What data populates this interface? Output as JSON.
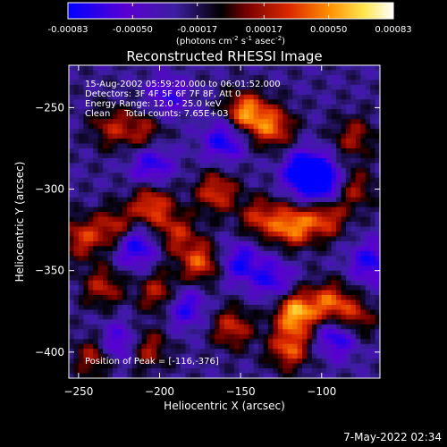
{
  "colorbar": {
    "tick_labels": [
      "-0.00083",
      "-0.00050",
      "-0.00017",
      "0.00017",
      "0.00050",
      "0.00083"
    ],
    "tick_values": [
      -0.00083,
      -0.0005,
      -0.00017,
      0.00017,
      0.0005,
      0.00083
    ],
    "range": [
      -0.00083,
      0.00083
    ],
    "unit_main": "(photons cm",
    "unit_sup1": "-2",
    "unit_mid": " s",
    "unit_sup2": "-1",
    "unit_end": " asec",
    "unit_sup3": "-2",
    "unit_close": ")",
    "colors": [
      "#0000ff",
      "#5a00d2",
      "#3c1ea0",
      "#000000",
      "#780000",
      "#dc2800",
      "#ff8c00",
      "#ffe650",
      "#ffffff"
    ]
  },
  "chart_data": {
    "type": "heatmap",
    "title": "Reconstructed RHESSI Image",
    "xlabel": "Heliocentric X (arcsec)",
    "ylabel": "Heliocentric Y (arcsec)",
    "xlim": [
      -256,
      -64
    ],
    "ylim": [
      -416,
      -224
    ],
    "x_ticks": [
      -250,
      -200,
      -150,
      -100
    ],
    "y_ticks": [
      -250,
      -300,
      -350,
      -400
    ],
    "grid": false,
    "annotations": [
      "15-Aug-2002 05:59:20.000 to 06:01:52.000",
      "Detectors: 3F 4F 5F 6F 7F 8F, Att 0",
      "Energy Range: 12.0 - 25.0 keV",
      "Clean     Total counts: 7.65E+03"
    ],
    "peak_label": "Position of Peak = [-116,-376]",
    "peak": [
      -116,
      -376
    ],
    "bright_sources": [
      {
        "x": -147,
        "y": -253,
        "value": 0.00075
      },
      {
        "x": -130,
        "y": -262,
        "value": 0.0006
      },
      {
        "x": -205,
        "y": -310,
        "value": 0.0006
      },
      {
        "x": -165,
        "y": -302,
        "value": 0.00055
      },
      {
        "x": -118,
        "y": -323,
        "value": 0.0007
      },
      {
        "x": -98,
        "y": -318,
        "value": 0.00055
      },
      {
        "x": -138,
        "y": -318,
        "value": 0.0005
      },
      {
        "x": -227,
        "y": -324,
        "value": 0.0005
      },
      {
        "x": -175,
        "y": -345,
        "value": 0.0006
      },
      {
        "x": -190,
        "y": -327,
        "value": 0.00045
      },
      {
        "x": -235,
        "y": -360,
        "value": 0.00045
      },
      {
        "x": -200,
        "y": -364,
        "value": 0.0005
      },
      {
        "x": -116,
        "y": -376,
        "value": 0.00083
      },
      {
        "x": -95,
        "y": -370,
        "value": 0.0006
      },
      {
        "x": -120,
        "y": -398,
        "value": 0.0006
      },
      {
        "x": -80,
        "y": -380,
        "value": 0.0005
      },
      {
        "x": -155,
        "y": -385,
        "value": 0.0005
      },
      {
        "x": -240,
        "y": -403,
        "value": 0.00045
      },
      {
        "x": -230,
        "y": -262,
        "value": 0.0004
      },
      {
        "x": -210,
        "y": -265,
        "value": 0.0004
      },
      {
        "x": -80,
        "y": -268,
        "value": 0.0004
      },
      {
        "x": -80,
        "y": -300,
        "value": 0.0004
      },
      {
        "x": -208,
        "y": -398,
        "value": 0.00045
      },
      {
        "x": -248,
        "y": -330,
        "value": 0.0005
      }
    ],
    "dark_sources": [
      {
        "x": -110,
        "y": -290,
        "value": -0.00083
      },
      {
        "x": -100,
        "y": -296,
        "value": -0.0007
      },
      {
        "x": -160,
        "y": -270,
        "value": -0.00055
      },
      {
        "x": -215,
        "y": -335,
        "value": -0.0006
      },
      {
        "x": -205,
        "y": -285,
        "value": -0.0005
      },
      {
        "x": -150,
        "y": -345,
        "value": -0.0005
      },
      {
        "x": -185,
        "y": -372,
        "value": -0.0005
      },
      {
        "x": -90,
        "y": -390,
        "value": -0.0006
      },
      {
        "x": -225,
        "y": -395,
        "value": -0.0005
      },
      {
        "x": -130,
        "y": -356,
        "value": -0.00045
      },
      {
        "x": -70,
        "y": -345,
        "value": -0.0005
      },
      {
        "x": -195,
        "y": -243,
        "value": -0.0004
      }
    ]
  },
  "footer": {
    "timestamp": "7-May-2022 02:34"
  }
}
